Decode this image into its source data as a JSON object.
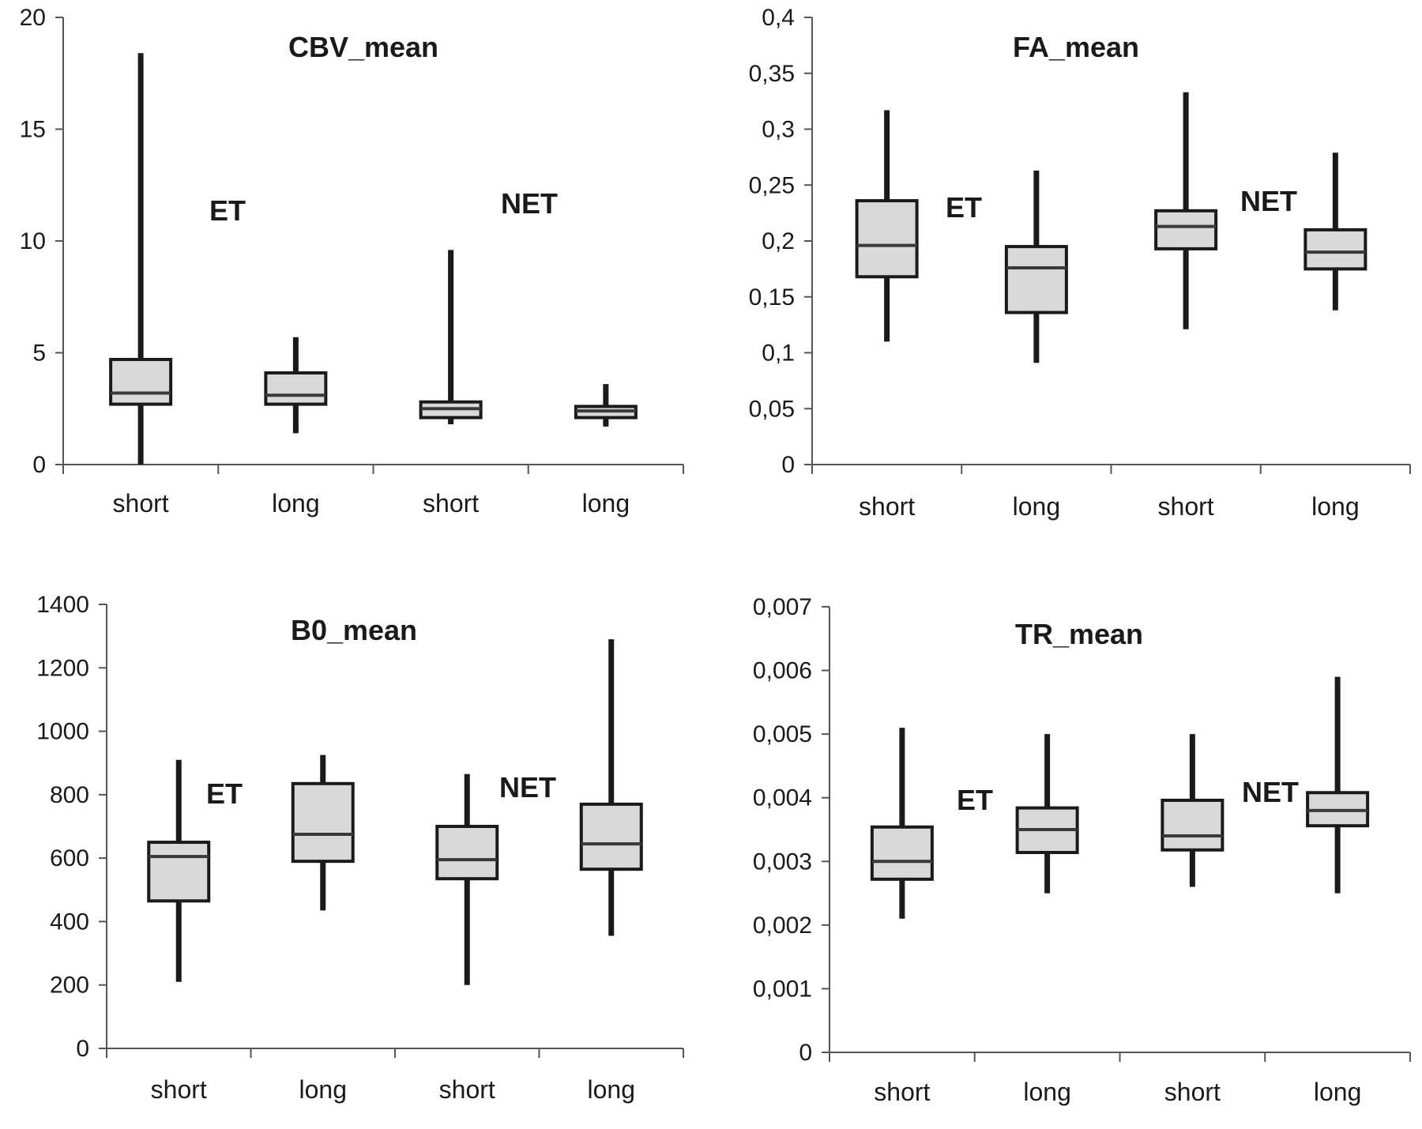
{
  "chart_data": [
    {
      "type": "box",
      "title": "CBV_mean",
      "categories": [
        "short",
        "long",
        "short",
        "long"
      ],
      "groups": [
        "ET",
        "NET"
      ],
      "ylim": [
        0,
        20
      ],
      "yticks": [
        0,
        5,
        10,
        15,
        20
      ],
      "ytick_labels": [
        "0",
        "5",
        "10",
        "15",
        "20"
      ],
      "boxes": [
        {
          "min": 0,
          "q1": 2.7,
          "median": 3.2,
          "q3": 4.7,
          "max": 18.4
        },
        {
          "min": 1.4,
          "q1": 2.7,
          "median": 3.1,
          "q3": 4.1,
          "max": 5.7
        },
        {
          "min": 1.8,
          "q1": 2.1,
          "median": 2.5,
          "q3": 2.8,
          "max": 9.6
        },
        {
          "min": 1.7,
          "q1": 2.1,
          "median": 2.4,
          "q3": 2.6,
          "max": 3.6
        }
      ]
    },
    {
      "type": "box",
      "title": "FA_mean",
      "categories": [
        "short",
        "long",
        "short",
        "long"
      ],
      "groups": [
        "ET",
        "NET"
      ],
      "ylim": [
        0,
        0.4
      ],
      "yticks": [
        0,
        0.05,
        0.1,
        0.15,
        0.2,
        0.25,
        0.3,
        0.35,
        0.4
      ],
      "ytick_labels": [
        "0",
        "0,05",
        "0,1",
        "0,15",
        "0,2",
        "0,25",
        "0,3",
        "0,35",
        "0,4"
      ],
      "boxes": [
        {
          "min": 0.11,
          "q1": 0.168,
          "median": 0.196,
          "q3": 0.236,
          "max": 0.317
        },
        {
          "min": 0.091,
          "q1": 0.136,
          "median": 0.176,
          "q3": 0.195,
          "max": 0.263
        },
        {
          "min": 0.121,
          "q1": 0.193,
          "median": 0.213,
          "q3": 0.227,
          "max": 0.333
        },
        {
          "min": 0.138,
          "q1": 0.175,
          "median": 0.19,
          "q3": 0.21,
          "max": 0.279
        }
      ]
    },
    {
      "type": "box",
      "title": "B0_mean",
      "categories": [
        "short",
        "long",
        "short",
        "long"
      ],
      "groups": [
        "ET",
        "NET"
      ],
      "ylim": [
        0,
        1400
      ],
      "yticks": [
        0,
        200,
        400,
        600,
        800,
        1000,
        1200,
        1400
      ],
      "ytick_labels": [
        "0",
        "200",
        "400",
        "600",
        "800",
        "1000",
        "1200",
        "1400"
      ],
      "boxes": [
        {
          "min": 210,
          "q1": 465,
          "median": 605,
          "q3": 650,
          "max": 910
        },
        {
          "min": 435,
          "q1": 590,
          "median": 675,
          "q3": 835,
          "max": 925
        },
        {
          "min": 200,
          "q1": 535,
          "median": 595,
          "q3": 700,
          "max": 865
        },
        {
          "min": 355,
          "q1": 565,
          "median": 645,
          "q3": 770,
          "max": 1290
        }
      ]
    },
    {
      "type": "box",
      "title": "TR_mean",
      "categories": [
        "short",
        "long",
        "short",
        "long"
      ],
      "groups": [
        "ET",
        "NET"
      ],
      "ylim": [
        0,
        0.007
      ],
      "yticks": [
        0,
        0.001,
        0.002,
        0.003,
        0.004,
        0.005,
        0.006,
        0.007
      ],
      "ytick_labels": [
        "0",
        "0,001",
        "0,002",
        "0,003",
        "0,004",
        "0,005",
        "0,006",
        "0,007"
      ],
      "boxes": [
        {
          "min": 0.0021,
          "q1": 0.00272,
          "median": 0.003,
          "q3": 0.00354,
          "max": 0.0051
        },
        {
          "min": 0.0025,
          "q1": 0.00314,
          "median": 0.0035,
          "q3": 0.00384,
          "max": 0.005
        },
        {
          "min": 0.0026,
          "q1": 0.00318,
          "median": 0.0034,
          "q3": 0.00396,
          "max": 0.005
        },
        {
          "min": 0.0025,
          "q1": 0.00356,
          "median": 0.0038,
          "q3": 0.00408,
          "max": 0.0059
        }
      ]
    }
  ],
  "colors": {
    "box_fill": "#d9d9d9",
    "stroke": "#1a1a1a",
    "median": "#3a3a3a",
    "axis": "#555555"
  }
}
